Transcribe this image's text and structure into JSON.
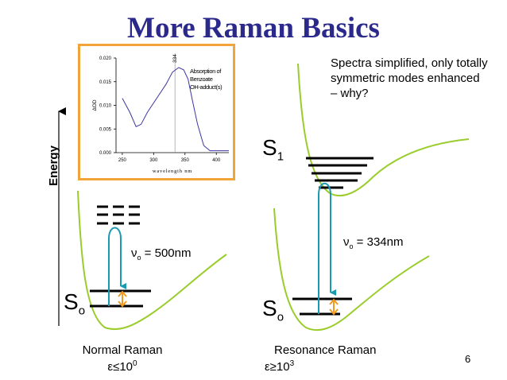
{
  "title": "More Raman Basics",
  "note": "Spectra simplified, only totally symmetric modes enhanced – why?",
  "page_number": "6",
  "axis_energy": "Energy",
  "left": {
    "ground_state": "S",
    "ground_sub": "o",
    "nu": "ν",
    "nu_sub": "o",
    "nu_value": " = 500nm",
    "caption": "Normal Raman",
    "eps": "ε≤10",
    "eps_exp": "0"
  },
  "right": {
    "excited_state": "S",
    "excited_sub": "1",
    "ground_state": "S",
    "ground_sub": "o",
    "nu": "ν",
    "nu_sub": "o",
    "nu_value": " = 334nm",
    "caption": "Resonance Raman",
    "eps": "ε≥10",
    "eps_exp": "3"
  },
  "colors": {
    "title": "#2b2a8c",
    "curve": "#9acd2c",
    "arrow": "#1a9ab0",
    "small_arrow": "#f29a1e",
    "inset_border": "#f2a33a",
    "plot_line": "#3a35a0"
  },
  "chart_data": {
    "type": "line",
    "xlabel": "wavelength nm",
    "ylabel": "ΔOD",
    "xlim": [
      240,
      420
    ],
    "ylim": [
      0,
      0.02
    ],
    "x_ticks": [
      "250",
      "300",
      "350",
      "400"
    ],
    "y_ticks": [
      "0.000",
      "0.005",
      "0.010",
      "0.015",
      "0.020"
    ],
    "legend": "Absorption of Benzoate OH-adduct(s)",
    "annotation": "334",
    "annotation_x": 334,
    "series": [
      {
        "x": [
          250,
          262,
          272,
          280,
          290,
          300,
          310,
          320,
          330,
          340,
          348,
          355,
          362,
          370,
          380,
          390,
          400,
          410,
          420
        ],
        "y": [
          0.0115,
          0.0085,
          0.0055,
          0.006,
          0.0085,
          0.0105,
          0.0125,
          0.0145,
          0.017,
          0.018,
          0.0175,
          0.0155,
          0.011,
          0.006,
          0.0015,
          0.0004,
          0.0004,
          0.0004,
          0.0004
        ]
      }
    ]
  }
}
